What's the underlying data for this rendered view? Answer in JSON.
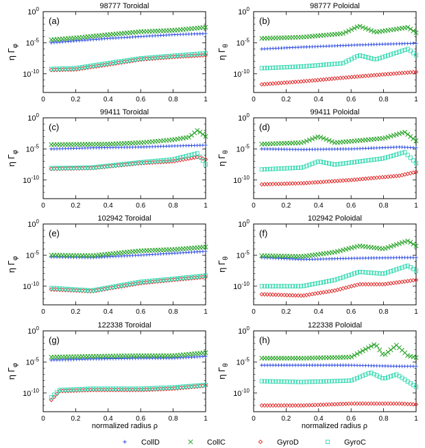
{
  "figure": {
    "xlabel": "normalized radius ρ",
    "y_ticks": [
      {
        "exp": "0",
        "value": 1
      },
      {
        "exp": "-5",
        "value": 1e-05
      },
      {
        "exp": "-10",
        "value": 1e-10
      }
    ],
    "x_ticks": [
      "0",
      "0.2",
      "0.4",
      "0.6",
      "0.8",
      "1"
    ],
    "legend": [
      {
        "name": "CollD",
        "color": "#2040e0",
        "marker": "plus"
      },
      {
        "name": "CollC",
        "color": "#20a020",
        "marker": "cross"
      },
      {
        "name": "GyroD",
        "color": "#e02020",
        "marker": "diamond"
      },
      {
        "name": "GyroC",
        "color": "#30d8b0",
        "marker": "square"
      }
    ]
  },
  "chart_data": [
    {
      "type": "scatter",
      "panel": "(a)",
      "title": "98777 Toroidal",
      "ylabel": "η Γ",
      "ysub": "φ",
      "xlim": [
        0,
        1
      ],
      "ylim": [
        1e-13,
        1
      ],
      "series": [
        {
          "name": "CollD",
          "x": [
            0.05,
            0.2,
            0.4,
            0.6,
            0.8,
            1.0
          ],
          "y": [
            1e-05,
            2e-05,
            5e-05,
            0.0001,
            0.0002,
            0.0003
          ]
        },
        {
          "name": "CollC",
          "x": [
            0.05,
            0.2,
            0.4,
            0.6,
            0.8,
            1.0
          ],
          "y": [
            3e-05,
            6e-05,
            0.0002,
            0.0006,
            0.001,
            0.003
          ]
        },
        {
          "name": "GyroD",
          "x": [
            0.05,
            0.2,
            0.4,
            0.6,
            0.8,
            1.0
          ],
          "y": [
            4e-10,
            5e-10,
            3e-09,
            2e-08,
            5e-08,
            1e-07
          ]
        },
        {
          "name": "GyroC",
          "x": [
            0.05,
            0.2,
            0.4,
            0.6,
            0.8,
            1.0
          ],
          "y": [
            6e-10,
            8e-10,
            5e-09,
            3e-08,
            8e-08,
            2e-07
          ]
        }
      ]
    },
    {
      "type": "scatter",
      "panel": "(b)",
      "title": "98777 Poloidal",
      "ylabel": "η Γ",
      "ysub": "θ",
      "xlim": [
        0,
        1
      ],
      "ylim": [
        1e-13,
        1
      ],
      "series": [
        {
          "name": "CollD",
          "x": [
            0.05,
            0.3,
            0.6,
            0.8,
            1.0
          ],
          "y": [
            1e-06,
            2e-06,
            4e-06,
            6e-06,
            8e-06
          ]
        },
        {
          "name": "CollC",
          "x": [
            0.05,
            0.3,
            0.55,
            0.65,
            0.75,
            0.95,
            1.0
          ],
          "y": [
            5e-05,
            8e-05,
            0.0003,
            0.005,
            0.0005,
            0.003,
            0.0004
          ]
        },
        {
          "name": "GyroD",
          "x": [
            0.05,
            0.3,
            0.6,
            0.8,
            1.0
          ],
          "y": [
            2e-12,
            6e-12,
            3e-11,
            8e-11,
            2e-10
          ]
        },
        {
          "name": "GyroC",
          "x": [
            0.05,
            0.3,
            0.55,
            0.65,
            0.75,
            0.95,
            1.0
          ],
          "y": [
            8e-10,
            1.5e-09,
            5e-09,
            1e-07,
            2e-08,
            1e-06,
            1e-07
          ]
        }
      ]
    },
    {
      "type": "scatter",
      "panel": "(c)",
      "title": "99411 Toroidal",
      "ylabel": "η Γ",
      "ysub": "φ",
      "xlim": [
        0,
        1
      ],
      "ylim": [
        1e-13,
        1
      ],
      "series": [
        {
          "name": "CollD",
          "x": [
            0.05,
            0.3,
            0.6,
            0.8,
            1.0
          ],
          "y": [
            1e-05,
            1.5e-05,
            2e-05,
            3e-05,
            4e-05
          ]
        },
        {
          "name": "CollC",
          "x": [
            0.05,
            0.4,
            0.6,
            0.8,
            0.9,
            0.95,
            1.0
          ],
          "y": [
            5e-05,
            6e-05,
            0.0001,
            0.0003,
            0.0008,
            0.01,
            0.001
          ]
        },
        {
          "name": "GyroD",
          "x": [
            0.05,
            0.3,
            0.6,
            0.8,
            0.95,
            1.0
          ],
          "y": [
            6e-09,
            8e-09,
            5e-08,
            1e-07,
            5e-07,
            2e-07
          ]
        },
        {
          "name": "GyroC",
          "x": [
            0.05,
            0.3,
            0.6,
            0.8,
            0.95,
            1.0
          ],
          "y": [
            8e-09,
            1e-08,
            7e-08,
            2e-07,
            2e-06,
            3e-08
          ]
        }
      ]
    },
    {
      "type": "scatter",
      "panel": "(d)",
      "title": "99411 Poloidal",
      "ylabel": "η Γ",
      "ysub": "θ",
      "xlim": [
        0,
        1
      ],
      "ylim": [
        1e-13,
        1
      ],
      "series": [
        {
          "name": "CollD",
          "x": [
            0.05,
            0.3,
            0.6,
            0.9,
            1.0
          ],
          "y": [
            1e-05,
            8e-06,
            1e-05,
            2e-05,
            1.5e-05
          ]
        },
        {
          "name": "CollC",
          "x": [
            0.05,
            0.3,
            0.4,
            0.5,
            0.8,
            0.93,
            1.0
          ],
          "y": [
            6e-05,
            0.0001,
            0.001,
            0.0001,
            0.0005,
            0.005,
            0.0002
          ]
        },
        {
          "name": "GyroD",
          "x": [
            0.05,
            0.3,
            0.6,
            0.9,
            1.0
          ],
          "y": [
            2e-11,
            3e-11,
            1e-10,
            5e-10,
            2e-09
          ]
        },
        {
          "name": "GyroC",
          "x": [
            0.05,
            0.3,
            0.4,
            0.5,
            0.8,
            0.93,
            1.0
          ],
          "y": [
            5e-09,
            1e-08,
            1e-07,
            3e-08,
            3e-07,
            3e-06,
            5e-08
          ]
        }
      ]
    },
    {
      "type": "scatter",
      "panel": "(e)",
      "title": "102942 Toroidal",
      "ylabel": "η Γ",
      "ysub": "φ",
      "xlim": [
        0,
        1
      ],
      "ylim": [
        1e-13,
        1
      ],
      "series": [
        {
          "name": "CollD",
          "x": [
            0.05,
            0.3,
            0.6,
            0.8,
            1.0
          ],
          "y": [
            5e-06,
            4e-06,
            1e-05,
            2e-05,
            4e-05
          ]
        },
        {
          "name": "CollC",
          "x": [
            0.05,
            0.3,
            0.6,
            0.8,
            1.0
          ],
          "y": [
            1e-05,
            8e-06,
            5e-05,
            8e-05,
            0.0002
          ]
        },
        {
          "name": "GyroD",
          "x": [
            0.05,
            0.3,
            0.6,
            0.8,
            1.0
          ],
          "y": [
            3e-11,
            1.5e-11,
            3e-10,
            1e-09,
            3e-09
          ]
        },
        {
          "name": "GyroC",
          "x": [
            0.05,
            0.3,
            0.6,
            0.8,
            1.0
          ],
          "y": [
            5e-11,
            2e-11,
            5e-10,
            1.5e-09,
            5e-09
          ]
        }
      ]
    },
    {
      "type": "scatter",
      "panel": "(f)",
      "title": "102942 Poloidal",
      "ylabel": "η Γ",
      "ysub": "θ",
      "xlim": [
        0,
        1
      ],
      "ylim": [
        1e-13,
        1
      ],
      "series": [
        {
          "name": "CollD",
          "x": [
            0.05,
            0.3,
            0.6,
            0.9,
            1.0
          ],
          "y": [
            4e-06,
            2e-06,
            3e-06,
            4e-06,
            4e-06
          ]
        },
        {
          "name": "CollC",
          "x": [
            0.05,
            0.3,
            0.5,
            0.65,
            0.8,
            0.95,
            1.0
          ],
          "y": [
            8e-06,
            6e-06,
            3e-05,
            0.0003,
            0.0001,
            0.002,
            0.0003
          ]
        },
        {
          "name": "GyroD",
          "x": [
            0.05,
            0.3,
            0.5,
            0.65,
            0.8,
            1.0
          ],
          "y": [
            5e-12,
            3e-12,
            2e-11,
            2e-10,
            2e-10,
            1e-09
          ]
        },
        {
          "name": "GyroC",
          "x": [
            0.05,
            0.3,
            0.5,
            0.65,
            0.8,
            0.95,
            1.0
          ],
          "y": [
            1e-10,
            1e-10,
            1e-09,
            2e-08,
            1e-08,
            2e-07,
            3e-08
          ]
        }
      ]
    },
    {
      "type": "scatter",
      "panel": "(g)",
      "title": "122338 Toroidal",
      "ylabel": "η Γ",
      "ysub": "φ",
      "xlim": [
        0,
        1
      ],
      "ylim": [
        1e-13,
        1
      ],
      "series": [
        {
          "name": "CollD",
          "x": [
            0.05,
            0.3,
            0.6,
            0.8,
            1.0
          ],
          "y": [
            2e-05,
            3e-05,
            4e-05,
            4e-05,
            8e-05
          ]
        },
        {
          "name": "CollC",
          "x": [
            0.05,
            0.3,
            0.6,
            0.8,
            1.0
          ],
          "y": [
            6e-05,
            8e-05,
            0.0001,
            0.0001,
            0.0003
          ]
        },
        {
          "name": "GyroD",
          "x": [
            0.05,
            0.1,
            0.3,
            0.6,
            0.8,
            1.0
          ],
          "y": [
            8e-12,
            2e-10,
            3e-10,
            3e-10,
            5e-10,
            1.5e-09
          ]
        },
        {
          "name": "GyroC",
          "x": [
            0.05,
            0.1,
            0.3,
            0.6,
            0.8,
            1.0
          ],
          "y": [
            2e-11,
            3e-10,
            5e-10,
            5e-10,
            8e-10,
            2e-09
          ]
        }
      ]
    },
    {
      "type": "scatter",
      "panel": "(h)",
      "title": "122338 Poloidal",
      "ylabel": "η Γ",
      "ysub": "θ",
      "xlim": [
        0,
        1
      ],
      "ylim": [
        1e-13,
        1
      ],
      "series": [
        {
          "name": "CollD",
          "x": [
            0.05,
            0.3,
            0.6,
            0.9,
            1.0
          ],
          "y": [
            3e-06,
            3e-06,
            3e-06,
            2e-06,
            2e-06
          ]
        },
        {
          "name": "CollC",
          "x": [
            0.05,
            0.3,
            0.6,
            0.75,
            0.8,
            0.88,
            0.95,
            1.0
          ],
          "y": [
            4e-05,
            4e-05,
            6e-05,
            0.008,
            0.0001,
            0.005,
            0.0001,
            5e-05
          ]
        },
        {
          "name": "GyroD",
          "x": [
            0.05,
            0.3,
            0.6,
            0.9,
            1.0
          ],
          "y": [
            1e-12,
            1e-12,
            2e-12,
            2e-12,
            1.5e-12
          ]
        },
        {
          "name": "GyroC",
          "x": [
            0.05,
            0.3,
            0.6,
            0.72,
            0.8,
            0.88,
            1.0
          ],
          "y": [
            8e-09,
            6e-09,
            1e-08,
            2e-07,
            2e-08,
            1e-07,
            1e-09
          ]
        }
      ]
    }
  ]
}
